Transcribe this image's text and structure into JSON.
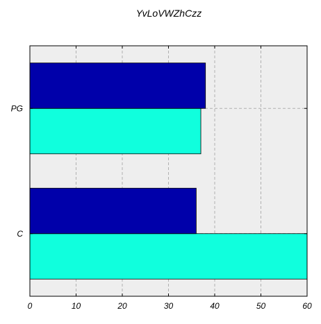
{
  "chart_data": {
    "type": "bar",
    "orientation": "horizontal",
    "title": "YvLoVWZhCzz",
    "xlabel": "",
    "ylabel": "",
    "categories": [
      "C",
      "PG"
    ],
    "series": [
      {
        "values": [
          60,
          37
        ],
        "color": "#10ffdd"
      },
      {
        "values": [
          36,
          38
        ],
        "color": "#0000aa"
      }
    ],
    "xlim": [
      0,
      60
    ],
    "xticks": [
      0,
      10,
      20,
      30,
      40,
      50,
      60
    ],
    "grid": true,
    "background": "#eeeeee"
  }
}
